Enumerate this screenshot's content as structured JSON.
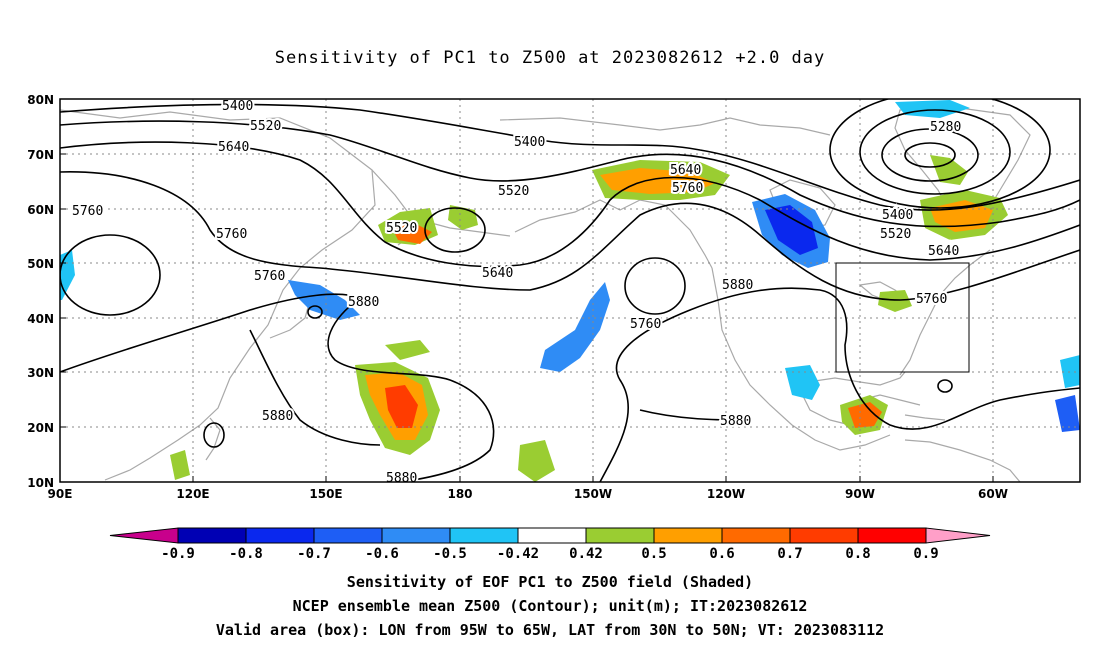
{
  "title": "Sensitivity of PC1 to Z500 at 2023082612 +2.0 day",
  "lat_labels": [
    "80N",
    "70N",
    "60N",
    "50N",
    "40N",
    "30N",
    "20N",
    "10N"
  ],
  "lon_labels": [
    "90E",
    "120E",
    "150E",
    "180",
    "150W",
    "120W",
    "90W",
    "60W"
  ],
  "contour_labels": [
    "5400",
    "5520",
    "5640",
    "5760",
    "5400",
    "5520",
    "5760",
    "5640",
    "5520",
    "5640",
    "5760",
    "5280",
    "5400",
    "5520",
    "5640",
    "5760",
    "5760",
    "5880",
    "5640",
    "5760",
    "5880",
    "5880",
    "5880",
    "5880"
  ],
  "colorbar": {
    "labels": [
      "-0.9",
      "-0.8",
      "-0.7",
      "-0.6",
      "-0.5",
      "-0.42",
      "0.42",
      "0.5",
      "0.6",
      "0.7",
      "0.8",
      "0.9"
    ],
    "colors": [
      "#0000b4",
      "#0a28ee",
      "#1e5ef5",
      "#2f8cf5",
      "#20c4f5",
      "#ffffff",
      "#9acd32",
      "#ff9f00",
      "#ff6a00",
      "#ff3c00",
      "#ff0000"
    ],
    "low_end_color": "#c8008c",
    "high_end_color": "#ff9fc8"
  },
  "valid_box": {
    "lon_min": "95W",
    "lon_max": "65W",
    "lat_min": "30N",
    "lat_max": "50N"
  },
  "captions": {
    "line1": "Sensitivity of EOF PC1 to Z500 field (Shaded)",
    "line2": "NCEP ensemble mean Z500 (Contour); unit(m); IT:2023082612",
    "line3": "Valid area (box): LON from 95W to 65W, LAT from 30N to 50N; VT: 2023083112"
  }
}
